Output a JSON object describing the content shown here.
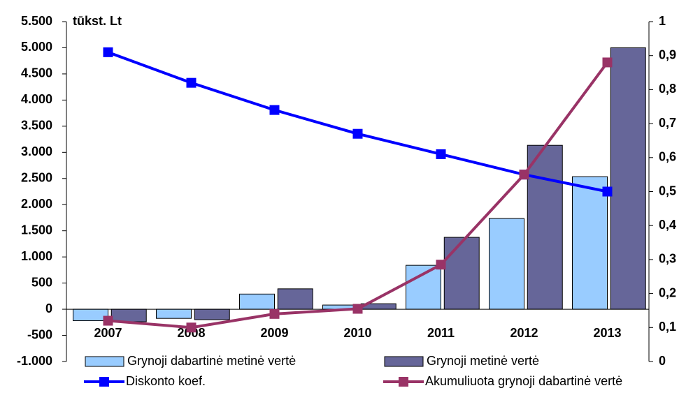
{
  "chart_data": {
    "type": "bar_line",
    "y_axis_label": "tūkst. Lt",
    "categories": [
      "2007",
      "2008",
      "2009",
      "2010",
      "2011",
      "2012",
      "2013"
    ],
    "ylim": [
      -1000,
      5500
    ],
    "yticks": [
      {
        "value": -1000,
        "label": "-1.000"
      },
      {
        "value": -500,
        "label": "-500"
      },
      0,
      500,
      {
        "value": 1000,
        "label": "1.000"
      },
      {
        "value": 1500,
        "label": "1.500"
      },
      {
        "value": 2000,
        "label": "2.000"
      },
      {
        "value": 2500,
        "label": "2.500"
      },
      {
        "value": 3000,
        "label": "3.000"
      },
      {
        "value": 3500,
        "label": "3.500"
      },
      {
        "value": 4000,
        "label": "4.000"
      },
      {
        "value": 4500,
        "label": "4.500"
      },
      {
        "value": 5000,
        "label": "5.000"
      },
      {
        "value": 5500,
        "label": "5.500"
      }
    ],
    "y2lim": [
      0,
      1
    ],
    "y2ticks": [
      0,
      {
        "value": 0.1,
        "label": "0,1"
      },
      {
        "value": 0.2,
        "label": "0,2"
      },
      {
        "value": 0.3,
        "label": "0,3"
      },
      {
        "value": 0.4,
        "label": "0,4"
      },
      {
        "value": 0.5,
        "label": "0,5"
      },
      {
        "value": 0.6,
        "label": "0,6"
      },
      {
        "value": 0.7,
        "label": "0,7"
      },
      {
        "value": 0.8,
        "label": "0,8"
      },
      {
        "value": 0.9,
        "label": "0,9"
      },
      1
    ],
    "series": [
      {
        "name": "Grynoji dabartinė metinė vertė",
        "kind": "bar",
        "color": "#99ccff",
        "values": [
          -220,
          -175,
          290,
          80,
          840,
          1735,
          2535
        ]
      },
      {
        "name": "Grynoji metinė vertė",
        "kind": "bar",
        "color": "#666699",
        "values": [
          -240,
          -200,
          390,
          105,
          1375,
          3135,
          5000
        ]
      },
      {
        "name": "Diskonto koef.",
        "kind": "line",
        "axis": "y2",
        "color": "#0000ff",
        "values": [
          0.91,
          0.82,
          0.74,
          0.67,
          0.61,
          0.55,
          0.5
        ]
      },
      {
        "name": "Akumuliuota grynoji dabartinė vertė",
        "kind": "line",
        "axis": "y2",
        "color": "#993366",
        "values": [
          0.12,
          0.1,
          0.14,
          0.155,
          0.285,
          0.55,
          0.88
        ]
      }
    ]
  }
}
